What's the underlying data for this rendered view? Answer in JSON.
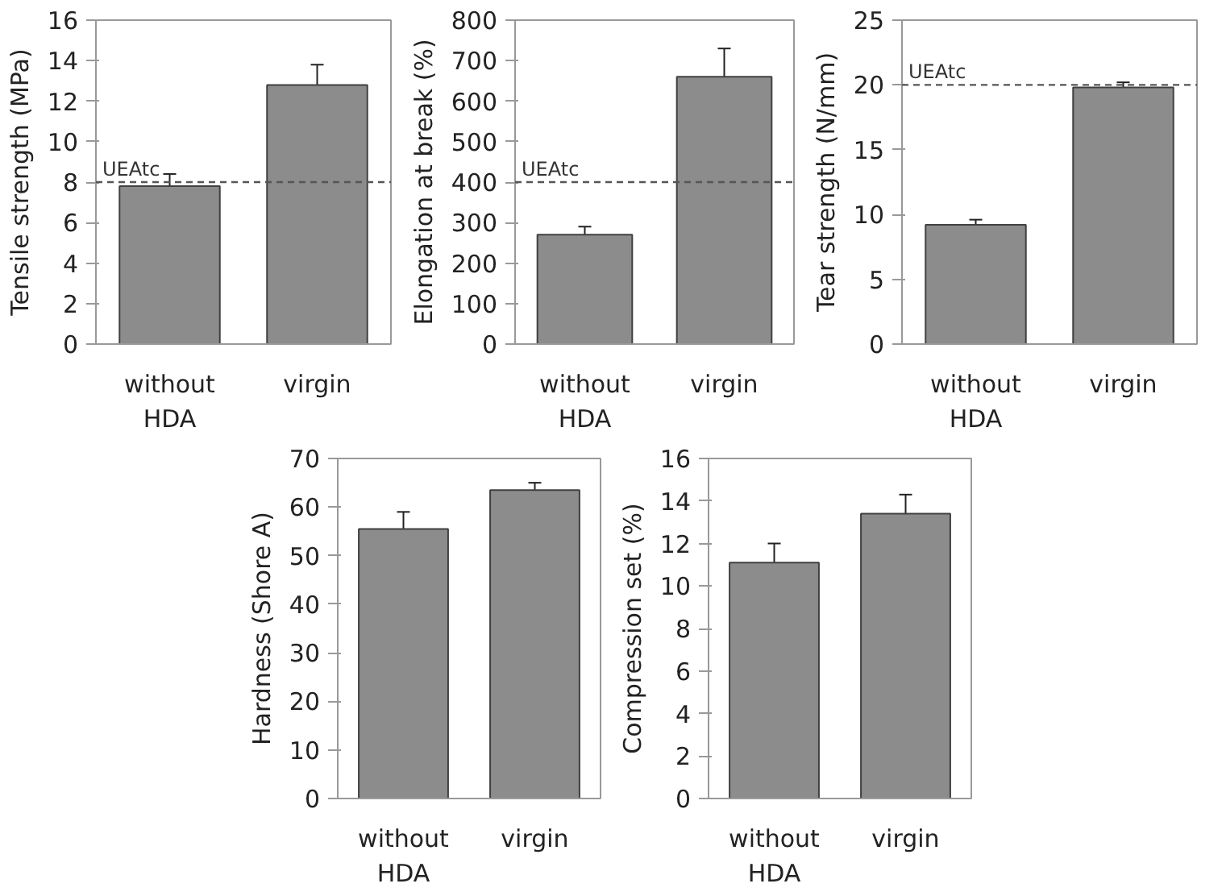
{
  "chart_data": [
    {
      "type": "bar",
      "ylabel": "Tensile strength (MPa)",
      "categories": [
        "without HDA",
        "virgin"
      ],
      "values": [
        7.8,
        12.8
      ],
      "errors": [
        0.6,
        1.0
      ],
      "color": "#8c8c8c",
      "ylim": [
        0,
        16
      ],
      "yticks": [
        0,
        2,
        4,
        6,
        8,
        10,
        12,
        14,
        16
      ],
      "grid": false,
      "ref_lines": [
        {
          "axis": "y",
          "value": 8,
          "label": "UEAtc",
          "line_style": "dashed"
        }
      ]
    },
    {
      "type": "bar",
      "ylabel": "Elongation at break (%)",
      "categories": [
        "without HDA",
        "virgin"
      ],
      "values": [
        270,
        660
      ],
      "errors": [
        20,
        70
      ],
      "color": "#8c8c8c",
      "ylim": [
        0,
        800
      ],
      "yticks": [
        0,
        100,
        200,
        300,
        400,
        500,
        600,
        700,
        800
      ],
      "grid": false,
      "ref_lines": [
        {
          "axis": "y",
          "value": 400,
          "label": "UEAtc",
          "line_style": "dashed"
        }
      ]
    },
    {
      "type": "bar",
      "ylabel": "Tear strength (N/mm)",
      "categories": [
        "without HDA",
        "virgin"
      ],
      "values": [
        9.2,
        19.8
      ],
      "errors": [
        0.4,
        0.4
      ],
      "color": "#8c8c8c",
      "ylim": [
        0,
        25
      ],
      "yticks": [
        0,
        5,
        10,
        15,
        20,
        25
      ],
      "grid": false,
      "ref_lines": [
        {
          "axis": "y",
          "value": 20,
          "label": "UEAtc",
          "line_style": "dashed"
        }
      ]
    },
    {
      "type": "bar",
      "ylabel": "Hardness (Shore A)",
      "categories": [
        "without HDA",
        "virgin"
      ],
      "values": [
        55.5,
        63.5
      ],
      "errors": [
        3.5,
        1.5
      ],
      "color": "#8c8c8c",
      "ylim": [
        0,
        70
      ],
      "yticks": [
        0,
        10,
        20,
        30,
        40,
        50,
        60,
        70
      ],
      "grid": false
    },
    {
      "type": "bar",
      "ylabel": "Compression set (%)",
      "categories": [
        "without HDA",
        "virgin"
      ],
      "values": [
        11.1,
        13.4
      ],
      "errors": [
        0.9,
        0.9
      ],
      "color": "#8c8c8c",
      "ylim": [
        0,
        16
      ],
      "yticks": [
        0,
        2,
        4,
        6,
        8,
        10,
        12,
        14,
        16
      ],
      "grid": false
    }
  ]
}
